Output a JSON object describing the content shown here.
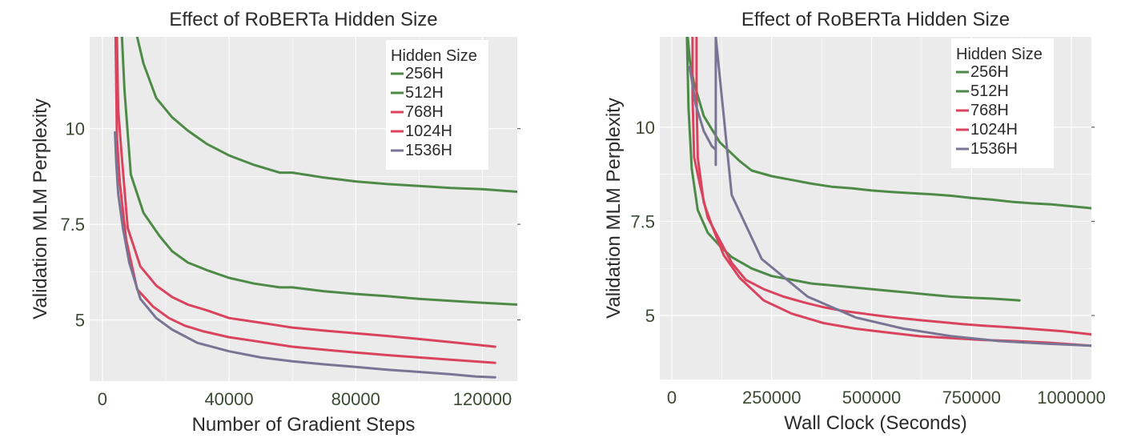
{
  "colors": {
    "panel_bg": "#ebebeb",
    "grid": "#ffffff",
    "text": "#2b2b2b",
    "tick_label": "#3d4a33",
    "green": "#4e8a47",
    "red": "#d9435d",
    "purple": "#7a7494"
  },
  "chart_data": [
    {
      "type": "line",
      "title": "Effect of RoBERTa Hidden Size",
      "xlabel": "Number of Gradient Steps",
      "ylabel": "Validation MLM Perplexity",
      "xlim": [
        -4000,
        131000
      ],
      "ylim": [
        3.4,
        12.4
      ],
      "xticks": [
        0,
        40000,
        80000,
        120000
      ],
      "xtick_labels": [
        "0",
        "40000",
        "80000",
        "120000"
      ],
      "yticks": [
        5,
        7.5,
        10
      ],
      "ytick_labels": [
        "5",
        "7.5",
        "10"
      ],
      "grid": true,
      "legend": {
        "title": "Hidden Size",
        "position": "top-right"
      },
      "series": [
        {
          "name": "256H",
          "color": "#4e8a47",
          "x": [
            11000,
            13000,
            17000,
            22000,
            27000,
            33000,
            40000,
            48000,
            56000,
            60000,
            70000,
            80000,
            90000,
            100000,
            110000,
            120000,
            131000
          ],
          "y": [
            12.4,
            11.7,
            10.8,
            10.3,
            9.95,
            9.6,
            9.3,
            9.05,
            8.85,
            8.85,
            8.72,
            8.62,
            8.55,
            8.5,
            8.45,
            8.42,
            8.35
          ]
        },
        {
          "name": "512H",
          "color": "#4e8a47",
          "x": [
            6200,
            7000,
            9000,
            13000,
            18000,
            22000,
            27000,
            33000,
            40000,
            48000,
            56000,
            60000,
            70000,
            80000,
            90000,
            100000,
            110000,
            120000,
            131000
          ],
          "y": [
            12.4,
            11,
            8.8,
            7.8,
            7.2,
            6.8,
            6.5,
            6.3,
            6.1,
            5.95,
            5.85,
            5.85,
            5.75,
            5.68,
            5.62,
            5.55,
            5.5,
            5.45,
            5.4
          ]
        },
        {
          "name": "768H",
          "color": "#d9435d",
          "x": [
            4600,
            5000,
            6000,
            8000,
            12000,
            17000,
            22000,
            27000,
            33000,
            40000,
            48000,
            56000,
            60000,
            70000,
            80000,
            90000,
            100000,
            110000,
            124000
          ],
          "y": [
            12.4,
            10.5,
            9.4,
            7.4,
            6.4,
            5.9,
            5.6,
            5.4,
            5.25,
            5.05,
            4.95,
            4.85,
            4.8,
            4.72,
            4.65,
            4.58,
            4.5,
            4.42,
            4.3
          ]
        },
        {
          "name": "1024H",
          "color": "#d9435d",
          "x": [
            4200,
            4600,
            5500,
            7500,
            11000,
            16000,
            21000,
            26000,
            32000,
            40000,
            48000,
            56000,
            60000,
            70000,
            80000,
            90000,
            100000,
            110000,
            124000
          ],
          "y": [
            12.4,
            9.8,
            8.6,
            7.1,
            5.8,
            5.35,
            5.05,
            4.85,
            4.7,
            4.55,
            4.45,
            4.35,
            4.3,
            4.22,
            4.15,
            4.08,
            4.02,
            3.96,
            3.88
          ]
        },
        {
          "name": "1536H",
          "color": "#7a7494",
          "x": [
            4000,
            4400,
            5000,
            6500,
            8500,
            12000,
            17000,
            22000,
            30000,
            40000,
            50000,
            60000,
            70000,
            80000,
            90000,
            100000,
            110000,
            118000,
            124000
          ],
          "y": [
            9.9,
            9.1,
            8.3,
            7.4,
            6.5,
            5.55,
            5.05,
            4.75,
            4.4,
            4.18,
            4.02,
            3.92,
            3.84,
            3.77,
            3.7,
            3.64,
            3.58,
            3.52,
            3.5
          ]
        }
      ]
    },
    {
      "type": "line",
      "title": "Effect of RoBERTa Hidden Size",
      "xlabel": "Wall Clock (Seconds)",
      "ylabel": "Validation MLM Perplexity",
      "xlim": [
        -30000,
        1050000
      ],
      "ylim": [
        3.3,
        12.4
      ],
      "xticks": [
        0,
        250000,
        500000,
        750000,
        1000000
      ],
      "xtick_labels": [
        "0",
        "250000",
        "500000",
        "750000",
        "1000000"
      ],
      "yticks": [
        5,
        7.5,
        10
      ],
      "ytick_labels": [
        "5",
        "7.5",
        "10"
      ],
      "grid": true,
      "legend": {
        "title": "Hidden Size",
        "position": "top-right"
      },
      "series": [
        {
          "name": "256H",
          "color": "#4e8a47",
          "x": [
            40000,
            45000,
            55000,
            80000,
            120000,
            170000,
            200000,
            250000,
            300000,
            350000,
            400000,
            450000,
            500000,
            550000,
            600000,
            650000,
            700000,
            750000,
            800000,
            850000,
            900000,
            950000,
            1000000,
            1050000
          ],
          "y": [
            12.4,
            11.8,
            11.2,
            10.3,
            9.6,
            9.1,
            8.85,
            8.7,
            8.6,
            8.5,
            8.42,
            8.38,
            8.32,
            8.28,
            8.25,
            8.22,
            8.18,
            8.12,
            8.08,
            8.02,
            7.98,
            7.95,
            7.9,
            7.85
          ]
        },
        {
          "name": "512H",
          "color": "#4e8a47",
          "x": [
            38000,
            42000,
            50000,
            65000,
            90000,
            120000,
            150000,
            200000,
            250000,
            300000,
            350000,
            400000,
            450000,
            500000,
            550000,
            600000,
            650000,
            700000,
            750000,
            800000,
            870000
          ],
          "y": [
            12.4,
            10.5,
            8.9,
            7.8,
            7.2,
            6.85,
            6.55,
            6.25,
            6.05,
            5.95,
            5.85,
            5.8,
            5.75,
            5.7,
            5.65,
            5.6,
            5.55,
            5.5,
            5.47,
            5.45,
            5.4
          ]
        },
        {
          "name": "768H",
          "color": "#d9435d",
          "x": [
            52000,
            52000,
            56000,
            70000,
            90000,
            120000,
            150000,
            185000,
            230000,
            280000,
            330000,
            380000,
            430000,
            480000,
            530000,
            580000,
            630000,
            680000,
            730000,
            780000,
            830000,
            880000,
            930000,
            980000,
            1050000
          ],
          "y": [
            12.4,
            10.8,
            9.2,
            8.5,
            7.6,
            7.0,
            6.4,
            5.95,
            5.7,
            5.5,
            5.35,
            5.22,
            5.12,
            5.05,
            4.98,
            4.92,
            4.87,
            4.82,
            4.77,
            4.73,
            4.7,
            4.66,
            4.62,
            4.58,
            4.5
          ]
        },
        {
          "name": "1024H",
          "color": "#d9435d",
          "x": [
            62000,
            62000,
            65000,
            80000,
            100000,
            130000,
            170000,
            230000,
            300000,
            380000,
            460000,
            540000,
            620000,
            700000,
            780000,
            860000,
            940000,
            1050000
          ],
          "y": [
            12.4,
            10.8,
            9.2,
            8.0,
            7.4,
            6.6,
            6.0,
            5.4,
            5.05,
            4.8,
            4.65,
            4.55,
            4.45,
            4.4,
            4.35,
            4.32,
            4.28,
            4.2
          ]
        },
        {
          "name": "1536H",
          "color": "#7a7494",
          "x": [
            45000,
            60000,
            80000,
            100000,
            110000,
            110000,
            110000,
            150000,
            225000,
            340000,
            460000,
            580000,
            700000,
            820000,
            940000,
            1050000
          ],
          "y": [
            11.6,
            10.6,
            9.9,
            9.5,
            9.4,
            9.0,
            12.4,
            8.2,
            6.5,
            5.5,
            4.95,
            4.65,
            4.45,
            4.32,
            4.25,
            4.2
          ]
        }
      ]
    }
  ]
}
